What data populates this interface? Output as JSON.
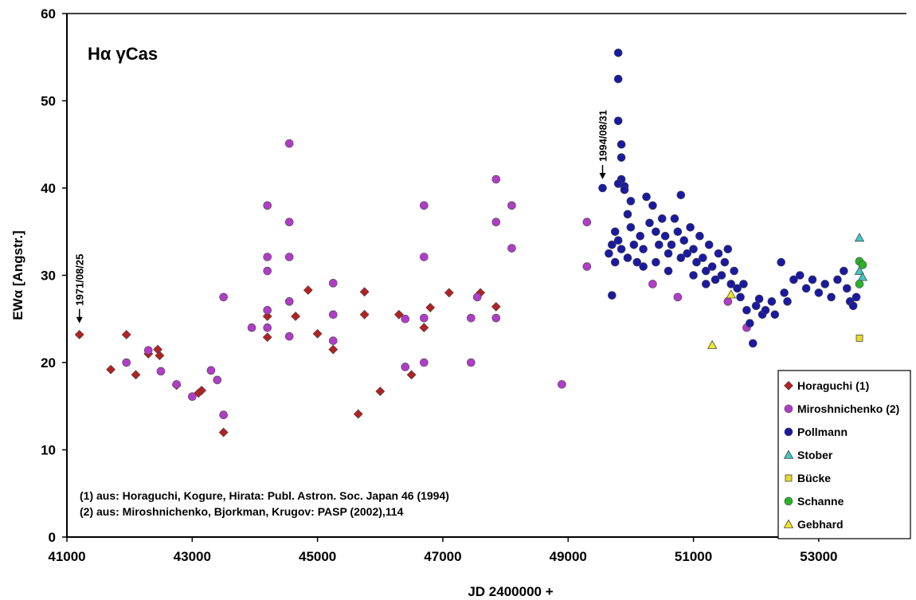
{
  "chart_data": {
    "type": "scatter",
    "title": "Hα γCas",
    "xlabel": "JD 2400000 +",
    "ylabel": "EWα [Angstr.]",
    "xlim": [
      41000,
      54400
    ],
    "ylim": [
      0,
      60
    ],
    "x_ticks": [
      41000,
      43000,
      45000,
      47000,
      49000,
      51000,
      53000
    ],
    "y_ticks": [
      0,
      10,
      20,
      30,
      40,
      50,
      60
    ],
    "grid": false,
    "legend_position": "bottom-right",
    "annotations": [
      {
        "text": "1971/08/25",
        "x": 41200,
        "y": 24.5
      },
      {
        "text": "1994/08/31",
        "x": 49550,
        "y": 41.0
      }
    ],
    "notes": [
      "(1) aus: Horaguchi, Kogure, Hirata: Publ. Astron. Soc. Japan 46 (1994)",
      "(2) aus: Miroshnichenko, Bjorkman, Krugov: PASP (2002),114"
    ],
    "series": [
      {
        "name": "Horaguchi (1)",
        "marker": "diamond",
        "color": "#b22222",
        "points": [
          [
            41200,
            23.2
          ],
          [
            41700,
            19.2
          ],
          [
            41950,
            23.2
          ],
          [
            42100,
            18.6
          ],
          [
            42300,
            21.0
          ],
          [
            42450,
            21.5
          ],
          [
            42480,
            20.8
          ],
          [
            42750,
            17.4
          ],
          [
            43100,
            16.5
          ],
          [
            43150,
            16.8
          ],
          [
            43500,
            12.0
          ],
          [
            44200,
            22.9
          ],
          [
            44200,
            25.3
          ],
          [
            44650,
            25.3
          ],
          [
            44850,
            28.3
          ],
          [
            45000,
            23.3
          ],
          [
            45250,
            21.5
          ],
          [
            45650,
            14.1
          ],
          [
            45750,
            25.5
          ],
          [
            45750,
            28.1
          ],
          [
            46000,
            16.7
          ],
          [
            46300,
            25.5
          ],
          [
            46500,
            18.6
          ],
          [
            46700,
            24.0
          ],
          [
            46800,
            26.3
          ],
          [
            47100,
            28.0
          ],
          [
            47600,
            28.0
          ],
          [
            47850,
            26.4
          ]
        ]
      },
      {
        "name": "Miroshnichenko (2)",
        "marker": "circle",
        "color": "#b03cc8",
        "points": [
          [
            41950,
            20.0
          ],
          [
            42300,
            21.4
          ],
          [
            42500,
            19.0
          ],
          [
            42750,
            17.5
          ],
          [
            43000,
            16.1
          ],
          [
            43300,
            19.1
          ],
          [
            43400,
            18.0
          ],
          [
            43500,
            14.0
          ],
          [
            43500,
            27.5
          ],
          [
            43950,
            24.0
          ],
          [
            44200,
            38.0
          ],
          [
            44200,
            32.1
          ],
          [
            44200,
            30.5
          ],
          [
            44200,
            26.0
          ],
          [
            44200,
            24.0
          ],
          [
            44550,
            45.1
          ],
          [
            44550,
            36.1
          ],
          [
            44550,
            32.1
          ],
          [
            44550,
            27.0
          ],
          [
            44550,
            23.0
          ],
          [
            45250,
            29.1
          ],
          [
            45250,
            25.5
          ],
          [
            45250,
            22.5
          ],
          [
            46400,
            25.0
          ],
          [
            46400,
            19.5
          ],
          [
            46700,
            38.0
          ],
          [
            46700,
            32.1
          ],
          [
            46700,
            25.1
          ],
          [
            46700,
            20.0
          ],
          [
            47450,
            25.1
          ],
          [
            47450,
            20.0
          ],
          [
            47550,
            27.5
          ],
          [
            47850,
            41.0
          ],
          [
            47850,
            36.1
          ],
          [
            47850,
            25.1
          ],
          [
            48100,
            38.0
          ],
          [
            48100,
            33.1
          ],
          [
            48900,
            17.5
          ],
          [
            49300,
            36.1
          ],
          [
            49300,
            31.0
          ],
          [
            50350,
            29.0
          ],
          [
            50750,
            27.5
          ],
          [
            51850,
            24.0
          ],
          [
            51550,
            27.0
          ]
        ]
      },
      {
        "name": "Pollmann",
        "marker": "circle",
        "color": "#1a1aa0",
        "points": [
          [
            49550,
            40.0
          ],
          [
            49650,
            32.5
          ],
          [
            49700,
            27.7
          ],
          [
            49750,
            31.5
          ],
          [
            49800,
            55.5
          ],
          [
            49800,
            52.5
          ],
          [
            49800,
            47.7
          ],
          [
            49850,
            45.0
          ],
          [
            49850,
            43.5
          ],
          [
            49850,
            41.0
          ],
          [
            49800,
            40.5
          ],
          [
            49900,
            40.2
          ],
          [
            49900,
            39.8
          ],
          [
            49750,
            35.0
          ],
          [
            49800,
            34.0
          ],
          [
            49850,
            33.0
          ],
          [
            49950,
            32.0
          ],
          [
            49700,
            33.5
          ],
          [
            49950,
            37.0
          ],
          [
            50000,
            38.5
          ],
          [
            50000,
            35.5
          ],
          [
            50050,
            33.5
          ],
          [
            50100,
            31.5
          ],
          [
            50150,
            34.5
          ],
          [
            50200,
            33.0
          ],
          [
            50250,
            39.0
          ],
          [
            50300,
            36.0
          ],
          [
            50350,
            38.0
          ],
          [
            50400,
            35.0
          ],
          [
            50450,
            33.5
          ],
          [
            50500,
            36.5
          ],
          [
            50550,
            34.5
          ],
          [
            50600,
            32.5
          ],
          [
            50650,
            33.5
          ],
          [
            50700,
            36.5
          ],
          [
            50750,
            35.0
          ],
          [
            50800,
            39.2
          ],
          [
            50850,
            34.0
          ],
          [
            50900,
            32.5
          ],
          [
            50950,
            35.5
          ],
          [
            51000,
            33.0
          ],
          [
            51050,
            31.5
          ],
          [
            51100,
            34.5
          ],
          [
            51150,
            32.0
          ],
          [
            51200,
            30.5
          ],
          [
            51250,
            33.5
          ],
          [
            51300,
            31.0
          ],
          [
            51350,
            29.5
          ],
          [
            51400,
            32.5
          ],
          [
            51450,
            30.0
          ],
          [
            51500,
            31.5
          ],
          [
            51550,
            33.0
          ],
          [
            51600,
            29.0
          ],
          [
            51650,
            30.5
          ],
          [
            51700,
            28.5
          ],
          [
            51750,
            27.5
          ],
          [
            51800,
            29.0
          ],
          [
            51850,
            26.0
          ],
          [
            51900,
            24.5
          ],
          [
            51950,
            22.2
          ],
          [
            52000,
            26.5
          ],
          [
            52050,
            27.3
          ],
          [
            52100,
            25.5
          ],
          [
            52150,
            26.0
          ],
          [
            52250,
            27.0
          ],
          [
            52300,
            25.5
          ],
          [
            52400,
            31.5
          ],
          [
            52450,
            28.0
          ],
          [
            52500,
            27.0
          ],
          [
            52600,
            29.5
          ],
          [
            52700,
            30.0
          ],
          [
            52800,
            28.5
          ],
          [
            52900,
            29.5
          ],
          [
            53000,
            28.0
          ],
          [
            53100,
            29.0
          ],
          [
            53200,
            27.5
          ],
          [
            53300,
            29.5
          ],
          [
            53400,
            30.5
          ],
          [
            53450,
            28.5
          ],
          [
            53500,
            27.0
          ],
          [
            53550,
            26.5
          ],
          [
            53600,
            27.5
          ],
          [
            50200,
            31.0
          ],
          [
            50400,
            31.5
          ],
          [
            50600,
            30.5
          ],
          [
            50800,
            32.0
          ],
          [
            51000,
            30.0
          ],
          [
            51200,
            29.0
          ]
        ]
      },
      {
        "name": "Stober",
        "marker": "triangle",
        "color": "#40c8c8",
        "points": [
          [
            53650,
            34.3
          ],
          [
            53650,
            30.5
          ],
          [
            53700,
            29.8
          ]
        ]
      },
      {
        "name": "Bücke",
        "marker": "square",
        "color": "#e6dc28",
        "points": [
          [
            53650,
            22.8
          ]
        ]
      },
      {
        "name": "Schanne",
        "marker": "circle",
        "color": "#28b428",
        "points": [
          [
            53650,
            31.6
          ],
          [
            53650,
            29.0
          ],
          [
            53700,
            31.2
          ]
        ]
      },
      {
        "name": "Gebhard",
        "marker": "triangle",
        "color": "#f0e628",
        "points": [
          [
            51300,
            22.0
          ],
          [
            51600,
            27.8
          ]
        ]
      }
    ]
  }
}
